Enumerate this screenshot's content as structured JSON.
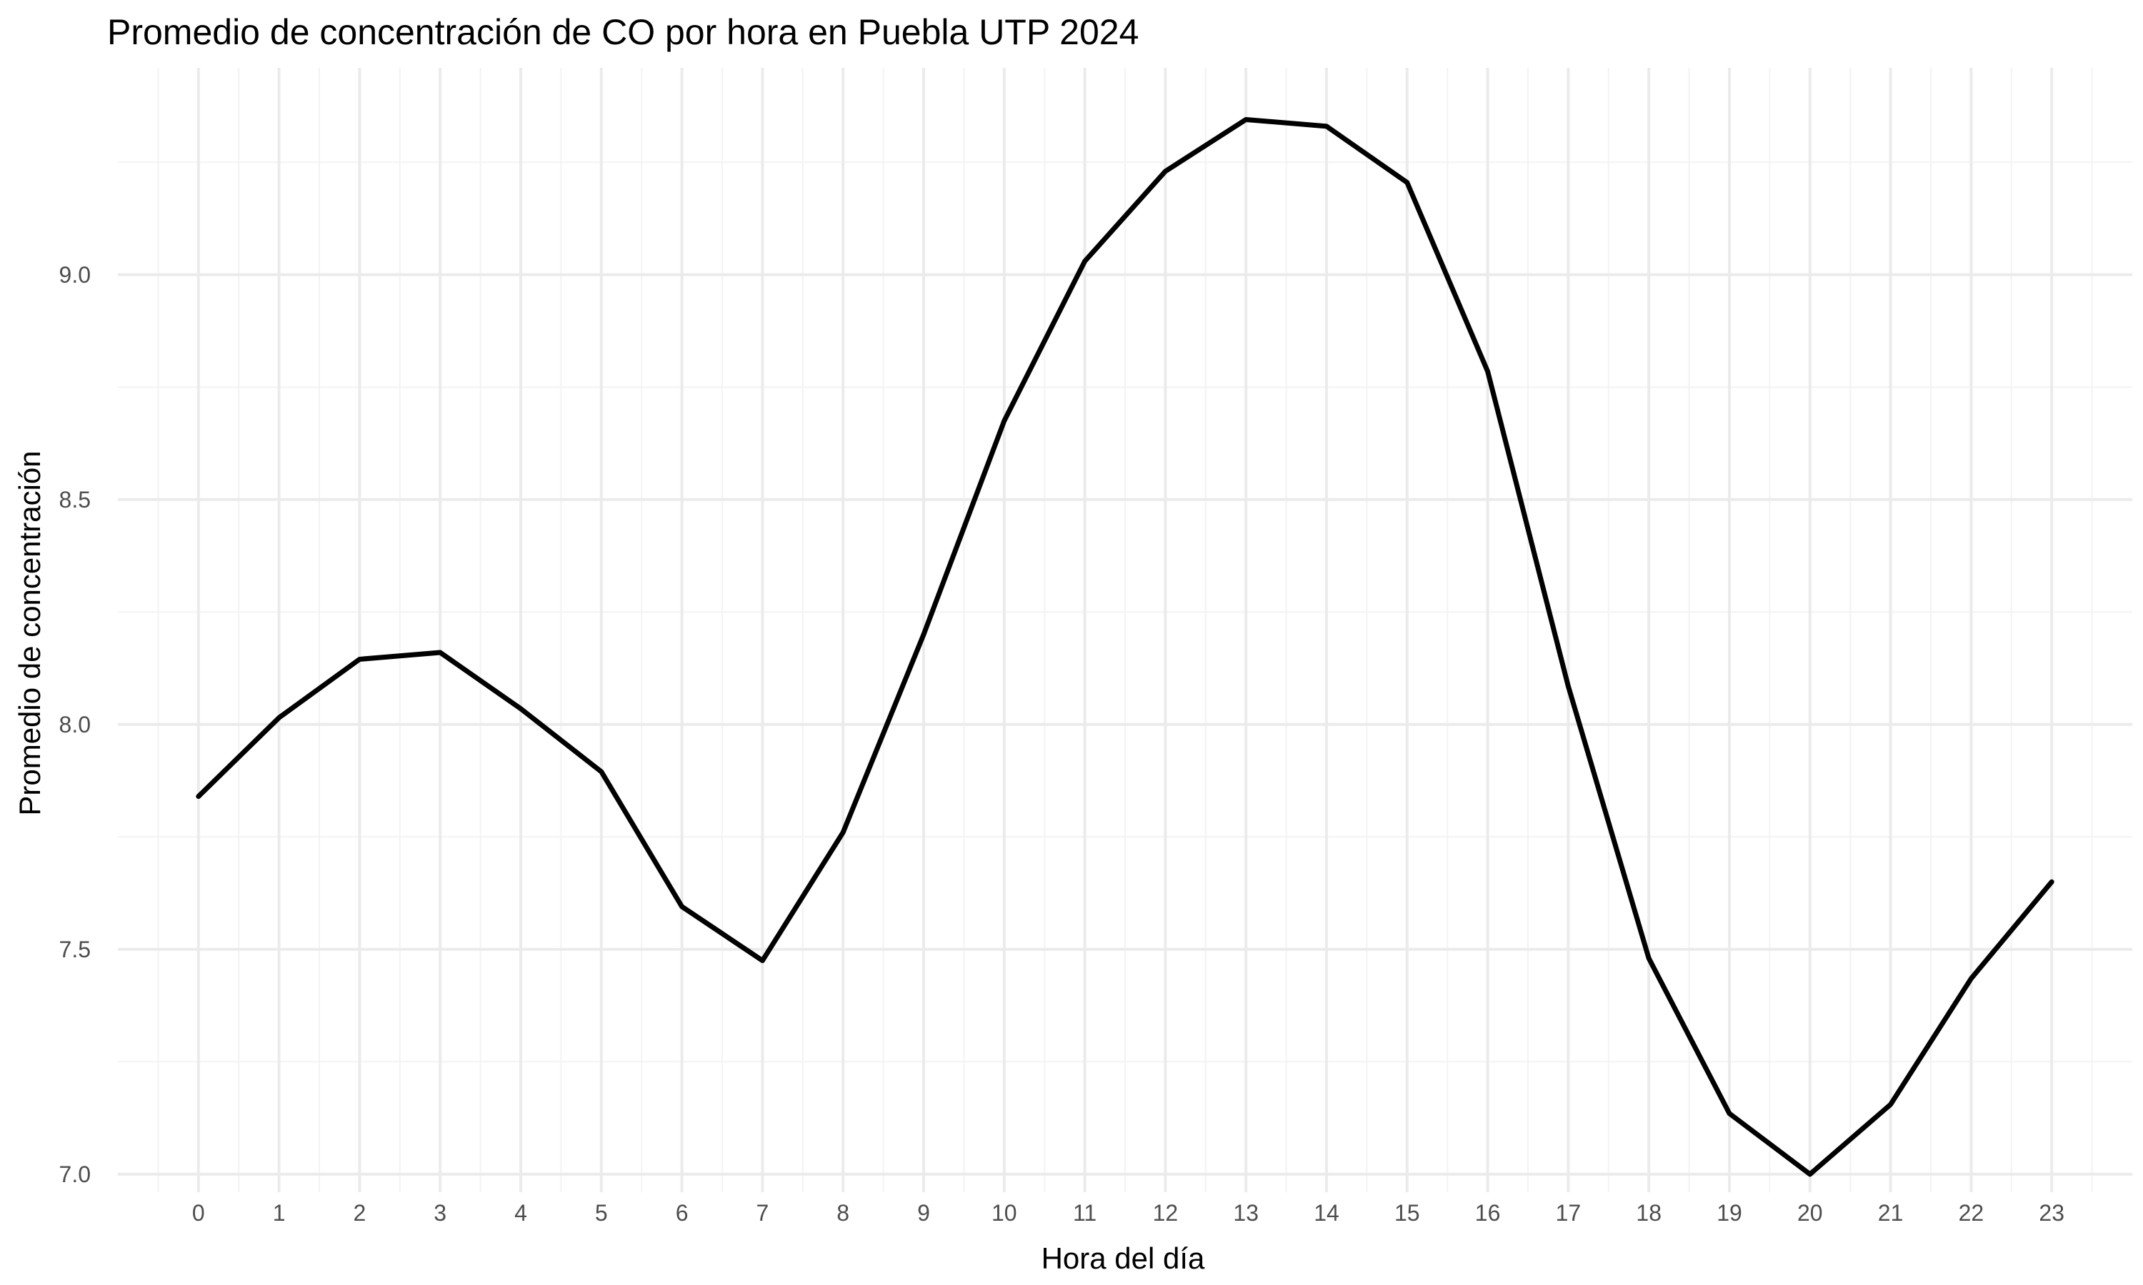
{
  "chart_data": {
    "type": "line",
    "title": "Promedio de concentración de CO por hora en Puebla UTP 2024",
    "xlabel": "Hora del día",
    "ylabel": "Promedio de concentración",
    "x": [
      0,
      1,
      2,
      3,
      4,
      5,
      6,
      7,
      8,
      9,
      10,
      11,
      12,
      13,
      14,
      15,
      16,
      17,
      18,
      19,
      20,
      21,
      22,
      23
    ],
    "y": [
      7.84,
      8.015,
      8.145,
      8.16,
      8.035,
      7.895,
      7.595,
      7.475,
      7.76,
      8.2,
      8.675,
      9.03,
      9.23,
      9.345,
      9.33,
      9.205,
      8.785,
      8.085,
      7.48,
      7.135,
      7.0,
      7.155,
      7.435,
      7.65
    ],
    "xlim": [
      -1,
      24
    ],
    "ylim": [
      6.96,
      9.46
    ],
    "x_ticks": [
      "0",
      "1",
      "2",
      "3",
      "4",
      "5",
      "6",
      "7",
      "8",
      "9",
      "10",
      "11",
      "12",
      "13",
      "14",
      "15",
      "16",
      "17",
      "18",
      "19",
      "20",
      "21",
      "22",
      "23"
    ],
    "y_ticks": [
      7.0,
      7.5,
      8.0,
      8.5,
      9.0
    ],
    "y_tick_labels": [
      "7.0",
      "7.5",
      "8.0",
      "8.5",
      "9.0"
    ],
    "grid": true,
    "legend": "none",
    "line_color": "#000000",
    "grid_color": "#ebebeb"
  }
}
